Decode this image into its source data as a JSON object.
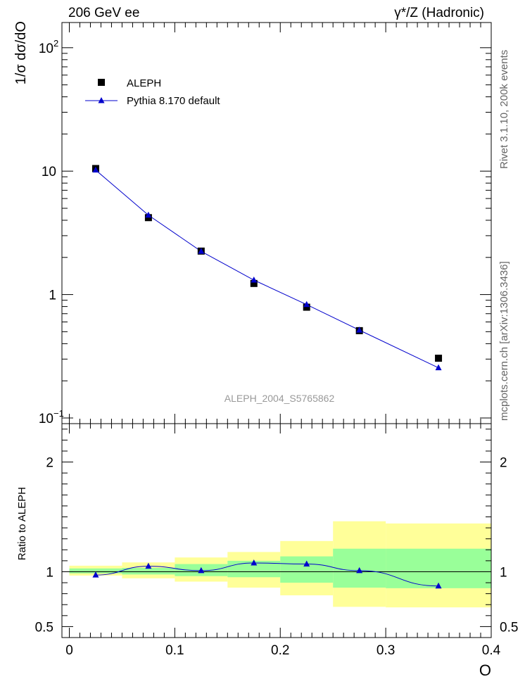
{
  "header": {
    "left": "206 GeV ee",
    "right": "γ*/Z (Hadronic)"
  },
  "side_labels": {
    "rivet": "Rivet 3.1.10,  200k events",
    "mcplots": "mcplots.cern.ch [arXiv:1306.3436]"
  },
  "chart_data": [
    {
      "type": "scatter",
      "panel": "main",
      "ylabel": "1/σ dσ/dO",
      "xlabel": "O",
      "yscale": "log",
      "ylim": [
        0.09,
        160
      ],
      "xlim": [
        -0.007,
        0.4
      ],
      "yticks": [
        {
          "v": 0.1,
          "base": "10",
          "exp": "−1"
        },
        {
          "v": 1,
          "base": "1",
          "exp": ""
        },
        {
          "v": 10,
          "base": "10",
          "exp": ""
        },
        {
          "v": 100,
          "base": "10",
          "exp": "2"
        }
      ],
      "watermark": "ALEPH_2004_S5765862",
      "legend_position": "top-left",
      "series": [
        {
          "name": "ALEPH",
          "marker": "square",
          "color": "#000000",
          "x": [
            0.025,
            0.075,
            0.125,
            0.175,
            0.225,
            0.275,
            0.35
          ],
          "y": [
            10.5,
            4.2,
            2.25,
            1.23,
            0.79,
            0.51,
            0.305
          ]
        },
        {
          "name": "Pythia 8.170 default",
          "marker": "triangle",
          "color": "#0000cc",
          "x": [
            0.025,
            0.075,
            0.125,
            0.175,
            0.225,
            0.275,
            0.35
          ],
          "y": [
            10.2,
            4.4,
            2.24,
            1.31,
            0.83,
            0.515,
            0.255
          ]
        }
      ]
    },
    {
      "type": "line",
      "panel": "ratio",
      "ylabel": "Ratio to ALEPH",
      "xlabel": "O",
      "ylim": [
        0.4,
        2.35
      ],
      "xlim": [
        -0.007,
        0.4
      ],
      "yticks": [
        0.5,
        1,
        2
      ],
      "xticks": [
        0,
        0.1,
        0.2,
        0.3,
        0.4
      ],
      "xtick_labels": [
        "0",
        "0.1",
        "0.2",
        "0.3",
        "0.4"
      ],
      "bands": [
        {
          "x0": 0.0,
          "x1": 0.05,
          "stat": [
            0.985,
            1.03
          ],
          "total": [
            0.965,
            1.055
          ]
        },
        {
          "x0": 0.05,
          "x1": 0.1,
          "stat": [
            0.975,
            1.035
          ],
          "total": [
            0.94,
            1.085
          ]
        },
        {
          "x0": 0.1,
          "x1": 0.15,
          "stat": [
            0.96,
            1.07
          ],
          "total": [
            0.91,
            1.13
          ]
        },
        {
          "x0": 0.15,
          "x1": 0.2,
          "stat": [
            0.95,
            1.1
          ],
          "total": [
            0.855,
            1.18
          ]
        },
        {
          "x0": 0.2,
          "x1": 0.25,
          "stat": [
            0.9,
            1.14
          ],
          "total": [
            0.785,
            1.28
          ]
        },
        {
          "x0": 0.25,
          "x1": 0.3,
          "stat": [
            0.855,
            1.21
          ],
          "total": [
            0.68,
            1.46
          ]
        },
        {
          "x0": 0.3,
          "x1": 0.4,
          "stat": [
            0.85,
            1.21
          ],
          "total": [
            0.675,
            1.44
          ]
        }
      ],
      "series": [
        {
          "name": "Pythia 8.170 default",
          "color": "#0000cc",
          "x": [
            0.025,
            0.075,
            0.125,
            0.175,
            0.225,
            0.275,
            0.35
          ],
          "y": [
            0.97,
            1.05,
            1.01,
            1.08,
            1.07,
            1.01,
            0.87
          ]
        }
      ]
    }
  ]
}
